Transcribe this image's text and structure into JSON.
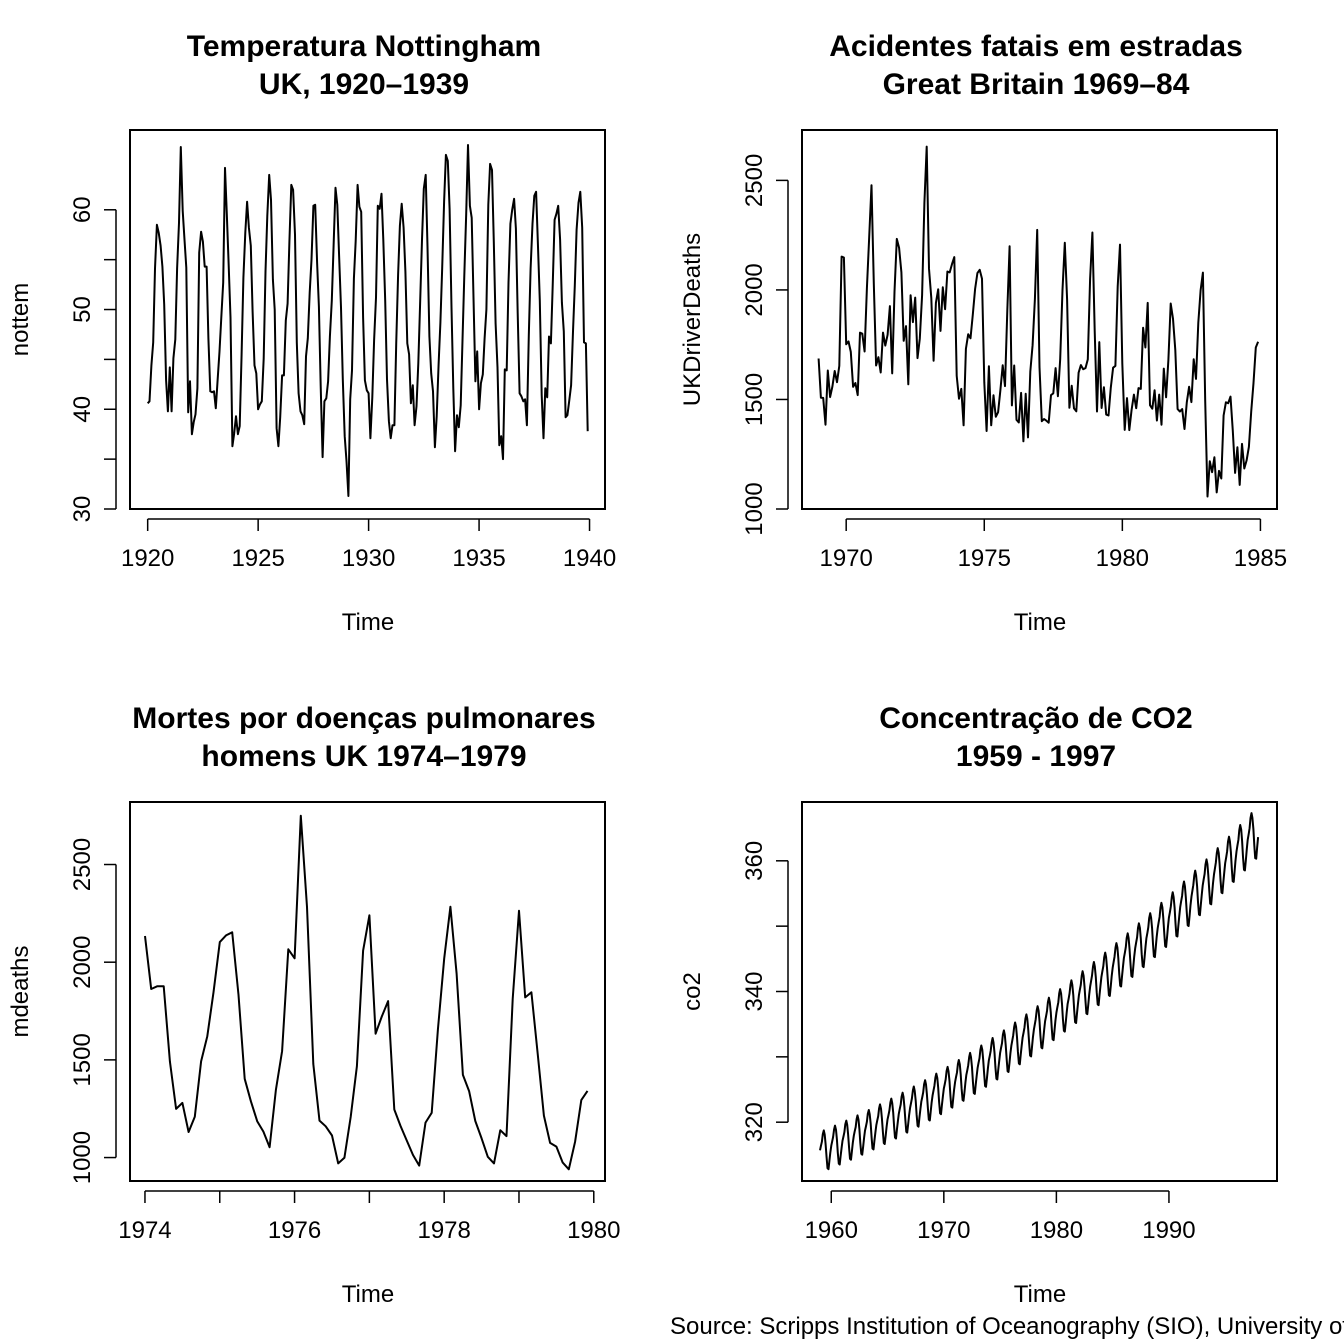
{
  "caption": "Source: Scripps Institution of Oceanography (SIO), University of California",
  "chart_data": [
    {
      "type": "line",
      "title": [
        "Temperatura Nottingham",
        "UK, 1920–1939"
      ],
      "xlabel": "Time",
      "ylabel": "nottem",
      "xlim": [
        1919.2,
        1940.7
      ],
      "ylim": [
        30,
        68
      ],
      "xticks": [
        1920,
        1925,
        1930,
        1935,
        1940
      ],
      "yticks": [
        30,
        35,
        40,
        45,
        50,
        55,
        60
      ],
      "ytick_labels": [
        30,
        40,
        50,
        60
      ],
      "start": 1920,
      "frequency": 12,
      "values": [
        40.6,
        40.8,
        44.4,
        46.7,
        54.1,
        58.5,
        57.7,
        56.4,
        54.3,
        50.5,
        42.9,
        39.8,
        44.2,
        39.8,
        45.1,
        47.0,
        54.1,
        58.7,
        66.3,
        59.9,
        57.0,
        54.2,
        39.7,
        42.8,
        37.5,
        38.7,
        39.5,
        42.1,
        55.7,
        57.8,
        56.8,
        54.3,
        54.3,
        47.1,
        41.8,
        41.7,
        41.8,
        40.1,
        42.9,
        45.8,
        49.2,
        52.7,
        64.2,
        59.6,
        54.4,
        49.2,
        36.3,
        37.6,
        39.3,
        37.5,
        38.3,
        45.5,
        53.2,
        57.7,
        60.8,
        58.2,
        56.4,
        49.8,
        44.4,
        43.6,
        40.0,
        40.5,
        40.8,
        45.1,
        53.8,
        59.4,
        63.5,
        61.0,
        53.0,
        50.0,
        38.1,
        36.3,
        39.2,
        43.4,
        43.4,
        48.9,
        50.6,
        56.8,
        62.5,
        62.0,
        57.5,
        46.7,
        41.6,
        39.8,
        39.4,
        38.5,
        45.3,
        47.1,
        51.7,
        55.0,
        60.4,
        60.5,
        54.7,
        50.3,
        42.3,
        35.2,
        40.8,
        41.1,
        42.8,
        47.3,
        50.9,
        56.4,
        62.2,
        60.5,
        55.4,
        50.2,
        43.0,
        37.3,
        34.8,
        31.3,
        41.0,
        43.9,
        53.1,
        56.9,
        62.5,
        60.3,
        59.8,
        49.2,
        42.9,
        41.9,
        41.6,
        37.1,
        41.2,
        46.9,
        51.2,
        60.4,
        60.1,
        61.6,
        57.0,
        50.9,
        43.0,
        38.8,
        37.1,
        38.4,
        38.4,
        46.5,
        53.5,
        58.4,
        60.6,
        58.2,
        53.8,
        46.6,
        45.5,
        40.6,
        42.4,
        38.4,
        40.3,
        44.6,
        50.9,
        57.0,
        62.1,
        63.5,
        56.3,
        47.3,
        43.6,
        41.8,
        36.2,
        39.3,
        44.5,
        48.7,
        54.2,
        60.8,
        65.5,
        64.9,
        60.1,
        50.2,
        42.1,
        35.8,
        39.4,
        38.2,
        40.4,
        46.9,
        53.4,
        59.6,
        66.5,
        60.4,
        59.2,
        51.2,
        42.8,
        45.8,
        40.0,
        42.6,
        43.5,
        47.1,
        50.0,
        60.5,
        64.6,
        64.0,
        56.8,
        48.6,
        44.2,
        36.4,
        37.3,
        35.0,
        44.0,
        43.9,
        52.7,
        58.6,
        60.0,
        61.1,
        58.1,
        49.6,
        41.6,
        41.3,
        40.8,
        41.0,
        38.4,
        47.4,
        54.1,
        58.6,
        61.4,
        61.8,
        56.3,
        50.9,
        41.4,
        37.1,
        42.1,
        41.2,
        47.3,
        46.6,
        52.4,
        59.0,
        59.6,
        60.4,
        57.0,
        50.7,
        47.8,
        39.2,
        39.4,
        40.9,
        42.4,
        47.8,
        52.4,
        58.0,
        60.7,
        61.8,
        58.2,
        46.7,
        46.6,
        37.8
      ]
    },
    {
      "type": "line",
      "title": [
        "Acidentes fatais em estradas",
        "Great Britain 1969–84"
      ],
      "xlabel": "Time",
      "ylabel": "UKDriverDeaths",
      "xlim": [
        1968.4,
        1985.6
      ],
      "ylim": [
        1000,
        2730
      ],
      "xticks": [
        1970,
        1975,
        1980,
        1985
      ],
      "yticks": [
        1000,
        1500,
        2000,
        2500
      ],
      "start": 1969,
      "frequency": 12,
      "values": [
        1687,
        1508,
        1507,
        1385,
        1632,
        1511,
        1559,
        1630,
        1579,
        1653,
        2152,
        2148,
        1752,
        1765,
        1717,
        1558,
        1575,
        1520,
        1805,
        1800,
        1719,
        2008,
        2242,
        2478,
        2030,
        1655,
        1693,
        1623,
        1805,
        1746,
        1795,
        1926,
        1619,
        1992,
        2233,
        2192,
        2080,
        1768,
        1835,
        1569,
        1976,
        1853,
        1965,
        1689,
        1778,
        1976,
        2397,
        2654,
        2097,
        1963,
        1677,
        1941,
        2003,
        1813,
        2012,
        1912,
        2084,
        2080,
        2118,
        2150,
        1608,
        1503,
        1548,
        1382,
        1731,
        1798,
        1779,
        1887,
        2004,
        2077,
        2092,
        2051,
        1577,
        1356,
        1652,
        1382,
        1519,
        1421,
        1442,
        1543,
        1656,
        1561,
        1905,
        2199,
        1473,
        1655,
        1407,
        1395,
        1530,
        1309,
        1526,
        1327,
        1627,
        1748,
        1958,
        2274,
        1648,
        1401,
        1411,
        1403,
        1394,
        1520,
        1528,
        1643,
        1515,
        1685,
        2000,
        2215,
        1956,
        1462,
        1563,
        1459,
        1446,
        1622,
        1657,
        1638,
        1643,
        1683,
        2050,
        2262,
        1813,
        1445,
        1762,
        1461,
        1556,
        1431,
        1427,
        1554,
        1645,
        1653,
        2016,
        2207,
        1665,
        1361,
        1506,
        1360,
        1453,
        1522,
        1460,
        1552,
        1548,
        1827,
        1737,
        1941,
        1474,
        1458,
        1542,
        1404,
        1522,
        1385,
        1641,
        1510,
        1681,
        1938,
        1868,
        1726,
        1456,
        1445,
        1456,
        1365,
        1487,
        1558,
        1488,
        1684,
        1594,
        1850,
        1998,
        2079,
        1494,
        1057,
        1218,
        1168,
        1236,
        1076,
        1174,
        1139,
        1427,
        1487,
        1483,
        1513,
        1357,
        1165,
        1282,
        1110,
        1297,
        1185,
        1222,
        1284,
        1444,
        1575,
        1737,
        1763
      ]
    },
    {
      "type": "line",
      "title": [
        "Mortes por doenças pulmonares",
        "homens  UK 1974–1979"
      ],
      "xlabel": "Time",
      "ylabel": "mdeaths",
      "xlim": [
        1973.8,
        1980.15
      ],
      "ylim": [
        880,
        2820
      ],
      "xticks": [
        1974,
        1975,
        1976,
        1977,
        1978,
        1979,
        1980
      ],
      "xtick_labels": [
        1974,
        1976,
        1978,
        1980
      ],
      "yticks": [
        1000,
        1500,
        2000,
        2500
      ],
      "start": 1974,
      "frequency": 12,
      "values": [
        2134,
        1863,
        1877,
        1877,
        1492,
        1249,
        1280,
        1131,
        1209,
        1492,
        1621,
        1846,
        2103,
        2137,
        2153,
        1833,
        1403,
        1288,
        1186,
        1133,
        1053,
        1347,
        1545,
        2066,
        2020,
        2750,
        2283,
        1479,
        1189,
        1160,
        1113,
        970,
        999,
        1208,
        1467,
        2059,
        2240,
        1634,
        1722,
        1801,
        1246,
        1162,
        1087,
        1013,
        959,
        1179,
        1229,
        1655,
        2019,
        2284,
        1942,
        1423,
        1340,
        1187,
        1098,
        1004,
        970,
        1140,
        1110,
        1812,
        2263,
        1820,
        1846,
        1531,
        1215,
        1075,
        1056,
        975,
        940,
        1081,
        1294,
        1341
      ]
    },
    {
      "type": "line",
      "title": [
        "Concentração de CO2",
        "1959 - 1997"
      ],
      "xlabel": "Time",
      "ylabel": "co2",
      "xlim": [
        1957.4,
        1999.6
      ],
      "ylim": [
        311,
        369
      ],
      "xticks": [
        1960,
        1970,
        1980,
        1990
      ],
      "yticks": [
        320,
        330,
        340,
        350,
        360
      ],
      "ytick_labels": [
        320,
        340,
        360
      ],
      "start": 1959,
      "frequency": 12,
      "start_value": 315.4,
      "end_value": 364.5,
      "seasonal_amplitude": 3.3,
      "caption_ref": true
    }
  ]
}
